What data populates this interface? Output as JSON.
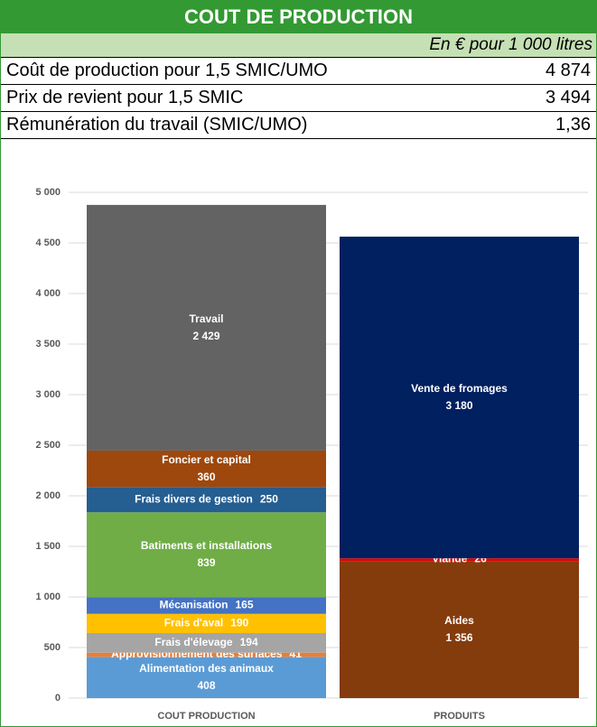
{
  "header": {
    "title": "COUT DE PRODUCTION",
    "subtitle": "En € pour 1 000 litres"
  },
  "table": {
    "rows": [
      [
        "Coût de production pour 1,5 SMIC/UMO",
        "4 874"
      ],
      [
        "Prix de revient pour 1,5 SMIC",
        "3 494"
      ],
      [
        "Rémunération du travail (SMIC/UMO)",
        "1,36"
      ]
    ]
  },
  "chart_data": {
    "type": "stacked_bar",
    "categories": [
      "COUT PRODUCTION",
      "PRODUITS"
    ],
    "ylim": [
      0,
      5000
    ],
    "yticks": [
      0,
      500,
      {
        "value": 1000,
        "label": "1 000"
      },
      {
        "value": 1500,
        "label": "1 500"
      },
      {
        "value": 2000,
        "label": "2 000"
      },
      {
        "value": 2500,
        "label": "2 500"
      },
      {
        "value": 3000,
        "label": "3 000"
      },
      {
        "value": 3500,
        "label": "3 500"
      },
      {
        "value": 4000,
        "label": "4 000"
      },
      {
        "value": 4500,
        "label": "4 500"
      },
      {
        "value": 5000,
        "label": "5 000"
      }
    ],
    "grid": true,
    "series": [
      {
        "name": "Alimentation des animaux",
        "color": "#5b9bd5",
        "values": [
          408,
          null
        ]
      },
      {
        "name": "Approvisionnement des surfaces",
        "color": "#ed7d31",
        "values": [
          41,
          null
        ]
      },
      {
        "name": "Frais d'élevage",
        "color": "#a5a5a5",
        "values": [
          194,
          null
        ]
      },
      {
        "name": "Frais d'aval",
        "color": "#ffc000",
        "values": [
          190,
          null
        ]
      },
      {
        "name": "Mécanisation",
        "color": "#4472c4",
        "values": [
          165,
          null
        ]
      },
      {
        "name": "Batiments et installations",
        "color": "#70ad47",
        "values": [
          839,
          null
        ]
      },
      {
        "name": "Frais divers de gestion",
        "color": "#255e91",
        "values": [
          250,
          null
        ]
      },
      {
        "name": "Foncier et capital",
        "color": "#9e480e",
        "values": [
          360,
          null
        ]
      },
      {
        "name": "Travail",
        "color": "#636363",
        "values": [
          2429,
          null
        ],
        "value_labels": [
          "2 429",
          null
        ]
      },
      {
        "name": "Aides",
        "color": "#843c0c",
        "values": [
          null,
          1356
        ],
        "value_labels": [
          null,
          "1 356"
        ]
      },
      {
        "name": "Viande",
        "color": "#e00000",
        "values": [
          null,
          26
        ]
      },
      {
        "name": "Vente de fromages",
        "color": "#002060",
        "values": [
          null,
          3180
        ],
        "value_labels": [
          null,
          "3 180"
        ]
      }
    ]
  }
}
